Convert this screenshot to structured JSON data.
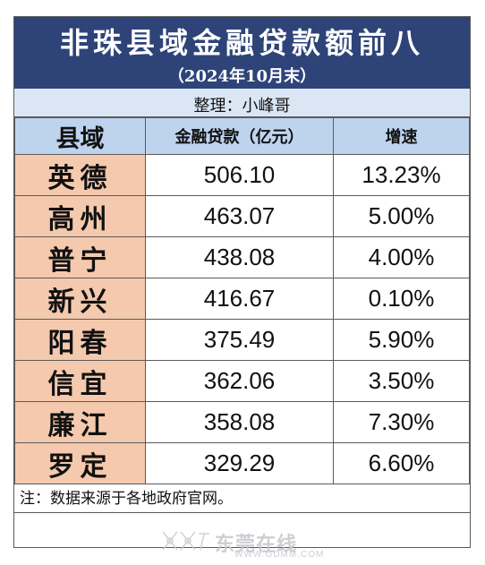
{
  "header": {
    "title": "非珠县域金融贷款额前八",
    "subtitle": "（2024年10月末）",
    "editor": "整理：小峰哥"
  },
  "table": {
    "columns": [
      "县域",
      "金融贷款（亿元）",
      "增速"
    ],
    "rows": [
      {
        "county": "英德",
        "loan": "506.10",
        "growth": "13.23%"
      },
      {
        "county": "高州",
        "loan": "463.07",
        "growth": "5.00%"
      },
      {
        "county": "普宁",
        "loan": "438.08",
        "growth": "4.00%"
      },
      {
        "county": "新兴",
        "loan": "416.67",
        "growth": "0.10%"
      },
      {
        "county": "阳春",
        "loan": "375.49",
        "growth": "5.90%"
      },
      {
        "county": "信宜",
        "loan": "362.06",
        "growth": "3.50%"
      },
      {
        "county": "廉江",
        "loan": "358.08",
        "growth": "7.30%"
      },
      {
        "county": "罗定",
        "loan": "329.29",
        "growth": "6.60%"
      }
    ]
  },
  "note": "注：数据来源于各地政府官网。",
  "watermark": {
    "text": "东莞在线",
    "url": "WWW.GDMM.COM"
  },
  "colors": {
    "title_band": "#2e4478",
    "editor_band": "#dbe6f5",
    "header_row": "#bed3ee",
    "county_cell": "#f5c9ad"
  }
}
